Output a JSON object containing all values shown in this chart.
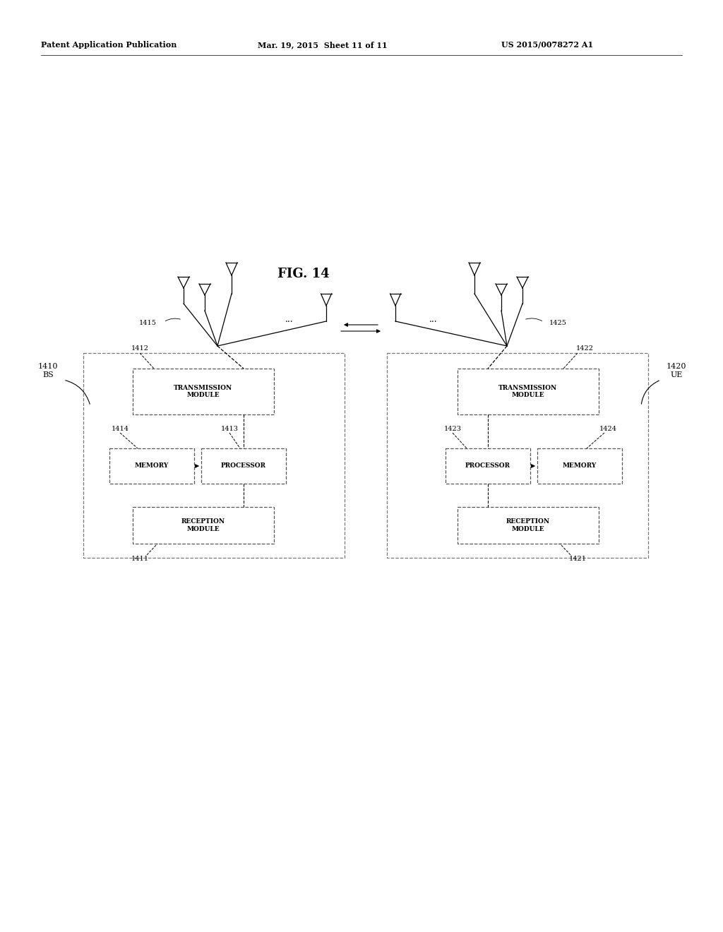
{
  "title": "FIG. 14",
  "header_left": "Patent Application Publication",
  "header_mid": "Mar. 19, 2015  Sheet 11 of 11",
  "header_right": "US 2015/0078272 A1",
  "background_color": "#ffffff",
  "text_color": "#000000",
  "bs_label": "1410\nBS",
  "ue_label": "1420\nUE",
  "bs_ant_label": "1415",
  "ue_ant_label": "1425",
  "bs_tx_label": "TRANSMISSION\nMODULE",
  "bs_tx_num": "1412",
  "bs_proc_label": "PROCESSOR",
  "bs_proc_num": "1413",
  "bs_mem_label": "MEMORY",
  "bs_mem_num": "1414",
  "bs_rx_label": "RECEPTION\nMODULE",
  "bs_rx_num": "1411",
  "ue_tx_label": "TRANSMISSION\nMODULE",
  "ue_tx_num": "1422",
  "ue_proc_label": "PROCESSOR",
  "ue_proc_num": "1423",
  "ue_mem_label": "MEMORY",
  "ue_mem_num": "1424",
  "ue_rx_label": "RECEPTION\nMODULE",
  "ue_rx_num": "1421"
}
